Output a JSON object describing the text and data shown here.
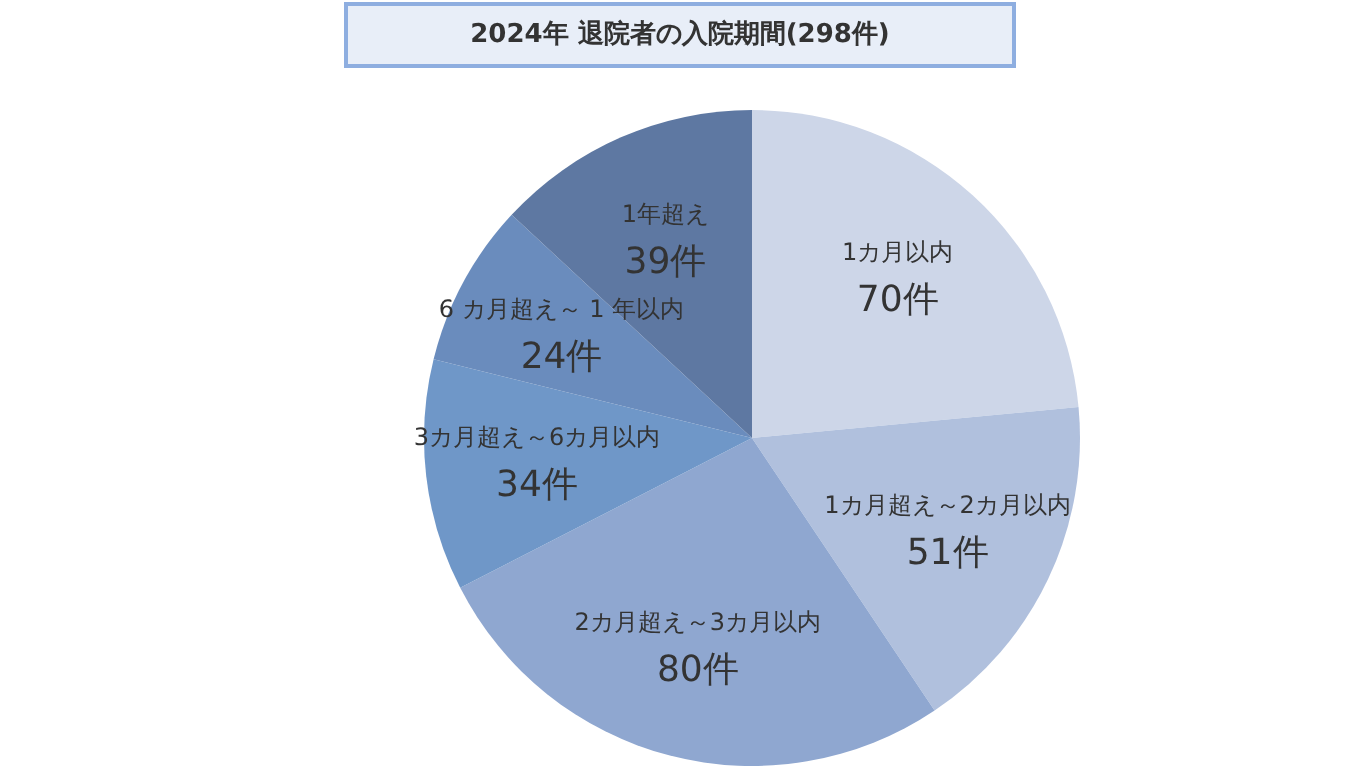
{
  "chart_data": {
    "type": "pie",
    "title": "2024年 退院者の入院期間(298件)",
    "categories": [
      "1カ月以内",
      "1カ月超え～2カ月以内",
      "2カ月超え～3カ月以内",
      "3カ月超え～6カ月以内",
      "6 カ月超え～ 1 年以内",
      "1年超え"
    ],
    "values": [
      70,
      51,
      80,
      34,
      24,
      39
    ],
    "colors": [
      "#cdd6e8",
      "#b0c0dd",
      "#8fa7d0",
      "#6f97c8",
      "#6a8cbd",
      "#5e78a2"
    ],
    "value_labels": [
      "70件",
      "51件",
      "80件",
      "34件",
      "24件",
      "39件"
    ],
    "legend": false
  }
}
